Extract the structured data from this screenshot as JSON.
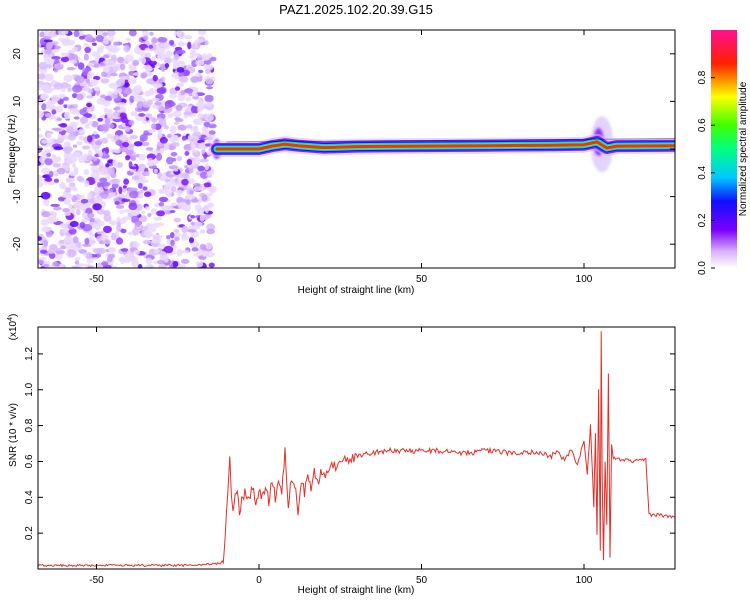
{
  "figure_title": "PAZ1.2025.102.20.39.G15",
  "chart_data": [
    {
      "type": "heatmap",
      "title": "",
      "xlabel": "Height of straight line (km)",
      "ylabel": "Frequency (Hz)",
      "xlim": [
        -68,
        128
      ],
      "ylim": [
        -25,
        25
      ],
      "x_ticks": [
        -50,
        0,
        50,
        100
      ],
      "y_ticks": [
        -20,
        -10,
        0,
        10,
        20
      ],
      "grid": false,
      "colorbar": {
        "label": "Normalized spectral amplitude",
        "range": [
          0,
          1
        ],
        "ticks": [
          0.0,
          0.2,
          0.4,
          0.6,
          0.8
        ],
        "tick_labels": [
          "0.0",
          "0.2",
          "0.4",
          "0.6",
          "0.8"
        ],
        "colormap": "rainbow (white, magenta, blue, cyan, green, yellow, red, pink)"
      },
      "features": {
        "noise_region_x": [
          -68,
          -14
        ],
        "signal_onset_x": -14,
        "signal_line_frequency_hz": [
          [
            -13,
            0
          ],
          [
            -10,
            0
          ],
          [
            0,
            0
          ],
          [
            4,
            0.6
          ],
          [
            8,
            1.0
          ],
          [
            12,
            0.7
          ],
          [
            20,
            0.3
          ],
          [
            30,
            0.5
          ],
          [
            50,
            0.6
          ],
          [
            70,
            0.7
          ],
          [
            90,
            0.8
          ],
          [
            100,
            0.9
          ],
          [
            104,
            1.5
          ],
          [
            107,
            0.2
          ],
          [
            110,
            0.6
          ],
          [
            128,
            0.7
          ]
        ],
        "disturbance_x": [
          102,
          109
        ]
      }
    },
    {
      "type": "line",
      "title": "",
      "xlabel": "Height of straight line (km)",
      "ylabel": "SNR (10 * v/v)",
      "y_multiplier": "(x10^4)",
      "xlim": [
        -68,
        128
      ],
      "ylim": [
        0,
        1.35
      ],
      "x_ticks": [
        -50,
        0,
        50,
        100
      ],
      "y_ticks": [
        0.2,
        0.4,
        0.6,
        0.8,
        1.0,
        1.2
      ],
      "grid": false,
      "series": [
        {
          "color": "#e0302a",
          "x": [
            -68,
            -40,
            -20,
            -12,
            -11,
            -10.5,
            -10,
            -9.5,
            -9,
            -8.5,
            -8,
            -7,
            -6,
            -5,
            -4,
            -3,
            -2,
            -1,
            0,
            1,
            2,
            3,
            4,
            5,
            6,
            7,
            8,
            9,
            10,
            11,
            12,
            13,
            14,
            15,
            16,
            17,
            18,
            19,
            20,
            22,
            24,
            26,
            28,
            30,
            33,
            36,
            40,
            45,
            50,
            55,
            60,
            65,
            70,
            75,
            80,
            85,
            88,
            90,
            92,
            94,
            96,
            98,
            100,
            101,
            102,
            103,
            103.5,
            104,
            104.5,
            105,
            105.3,
            105.6,
            106,
            106.5,
            107,
            107.5,
            108,
            108.5,
            109,
            110,
            112,
            115,
            118,
            119,
            119.5,
            120,
            124,
            128
          ],
          "values": [
            0.02,
            0.02,
            0.02,
            0.03,
            0.06,
            0.18,
            0.3,
            0.45,
            0.62,
            0.4,
            0.34,
            0.45,
            0.32,
            0.4,
            0.43,
            0.38,
            0.45,
            0.36,
            0.44,
            0.4,
            0.46,
            0.38,
            0.48,
            0.4,
            0.52,
            0.42,
            0.67,
            0.35,
            0.5,
            0.48,
            0.32,
            0.5,
            0.42,
            0.52,
            0.44,
            0.55,
            0.47,
            0.56,
            0.52,
            0.57,
            0.58,
            0.6,
            0.62,
            0.63,
            0.64,
            0.65,
            0.66,
            0.66,
            0.66,
            0.66,
            0.65,
            0.65,
            0.66,
            0.65,
            0.65,
            0.65,
            0.64,
            0.63,
            0.66,
            0.6,
            0.67,
            0.58,
            0.72,
            0.52,
            0.8,
            0.35,
            0.75,
            0.2,
            1.0,
            0.1,
            1.33,
            0.5,
            0.05,
            0.6,
            0.25,
            1.1,
            0.06,
            0.7,
            0.62,
            0.61,
            0.61,
            0.6,
            0.61,
            0.62,
            0.45,
            0.3,
            0.3,
            0.29
          ]
        }
      ]
    }
  ]
}
